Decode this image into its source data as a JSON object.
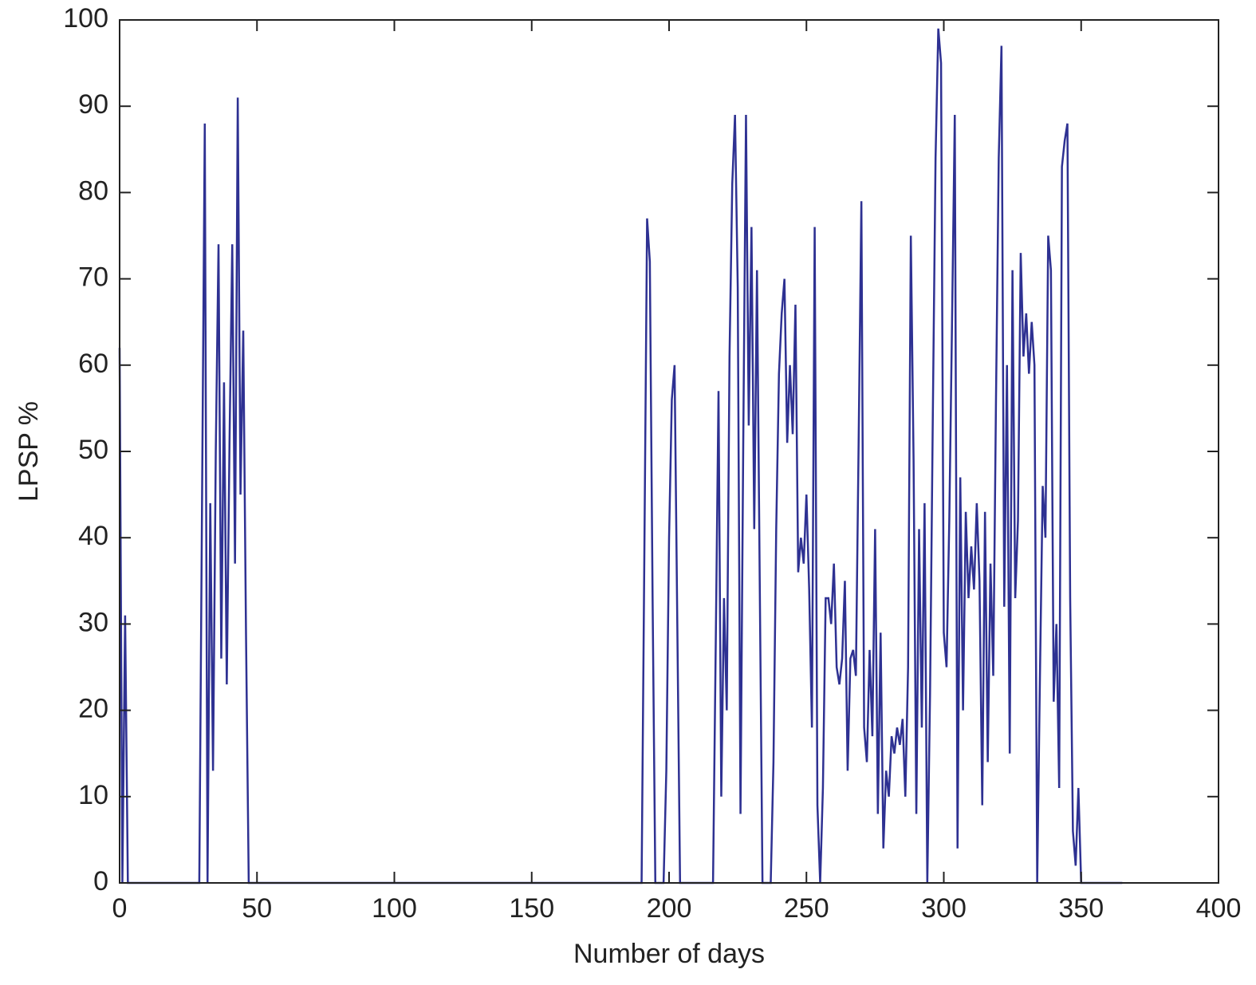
{
  "chart_data": {
    "type": "line",
    "x_label": "Number of days",
    "y_label": "LPSP %",
    "color": "#2e3192",
    "xlim": [
      0,
      400
    ],
    "xticks": [
      0,
      50,
      100,
      150,
      200,
      250,
      300,
      350,
      400
    ],
    "ylim": [
      0,
      100
    ],
    "yticks": [
      0,
      10,
      20,
      30,
      40,
      50,
      60,
      70,
      80,
      90,
      100
    ],
    "grid": false,
    "x": [
      0,
      1,
      2,
      3,
      29,
      30,
      31,
      32,
      33,
      34,
      35,
      36,
      37,
      38,
      39,
      40,
      41,
      42,
      43,
      44,
      45,
      46,
      47,
      190,
      191,
      192,
      193,
      194,
      195,
      198,
      199,
      200,
      201,
      202,
      203,
      204,
      216,
      217,
      218,
      219,
      220,
      221,
      222,
      223,
      224,
      225,
      226,
      227,
      228,
      229,
      230,
      231,
      232,
      233,
      234,
      237,
      238,
      239,
      240,
      241,
      242,
      243,
      244,
      245,
      246,
      247,
      248,
      249,
      250,
      251,
      252,
      253,
      254,
      255,
      256,
      257,
      258,
      259,
      260,
      261,
      262,
      263,
      264,
      265,
      266,
      267,
      268,
      269,
      270,
      271,
      272,
      273,
      274,
      275,
      276,
      277,
      278,
      279,
      280,
      281,
      282,
      283,
      284,
      285,
      286,
      287,
      288,
      289,
      290,
      291,
      292,
      293,
      294,
      295,
      296,
      297,
      298,
      299,
      300,
      301,
      302,
      303,
      304,
      305,
      306,
      307,
      308,
      309,
      310,
      311,
      312,
      313,
      314,
      315,
      316,
      317,
      318,
      319,
      320,
      321,
      322,
      323,
      324,
      325,
      326,
      327,
      328,
      329,
      330,
      331,
      332,
      333,
      334,
      335,
      336,
      337,
      338,
      339,
      340,
      341,
      342,
      343,
      344,
      345,
      346,
      347,
      348,
      349,
      350,
      365
    ],
    "values": [
      62,
      0,
      31,
      0,
      0,
      44,
      88,
      0,
      44,
      13,
      50,
      74,
      26,
      58,
      23,
      51,
      74,
      37,
      91,
      45,
      64,
      29,
      0,
      0,
      38,
      77,
      72,
      33,
      0,
      0,
      13,
      40,
      56,
      60,
      30,
      0,
      0,
      28,
      57,
      10,
      33,
      20,
      61,
      81,
      89,
      69,
      8,
      51,
      89,
      53,
      76,
      41,
      71,
      35,
      0,
      0,
      14,
      41,
      59,
      66,
      70,
      51,
      60,
      52,
      67,
      36,
      40,
      37,
      45,
      34,
      18,
      76,
      9,
      0,
      11,
      33,
      33,
      30,
      37,
      25,
      23,
      26,
      35,
      13,
      26,
      27,
      24,
      51,
      79,
      18,
      14,
      27,
      17,
      41,
      8,
      29,
      4,
      13,
      10,
      17,
      15,
      18,
      16,
      19,
      10,
      25,
      75,
      49,
      8,
      41,
      18,
      44,
      0,
      22,
      54,
      84,
      99,
      95,
      29,
      25,
      42,
      65,
      89,
      4,
      47,
      20,
      43,
      33,
      39,
      34,
      44,
      35,
      9,
      43,
      14,
      37,
      24,
      56,
      84,
      97,
      32,
      60,
      15,
      71,
      33,
      42,
      73,
      61,
      66,
      59,
      65,
      60,
      0,
      24,
      46,
      40,
      75,
      71,
      21,
      30,
      11,
      83,
      86,
      88,
      33,
      6,
      2,
      11,
      0,
      0
    ]
  }
}
